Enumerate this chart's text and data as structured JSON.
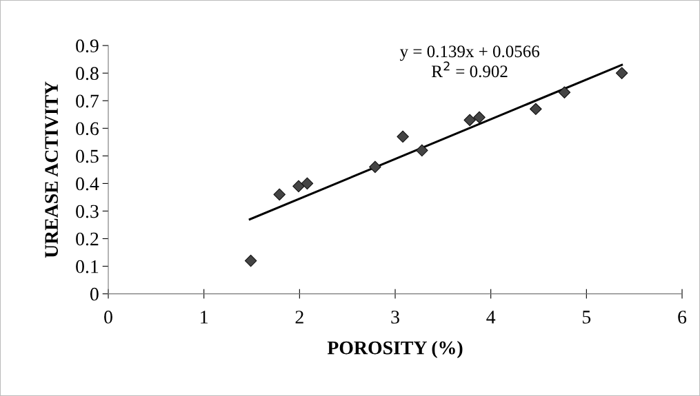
{
  "chart_data": {
    "type": "scatter",
    "xlabel": "POROSITY (%)",
    "ylabel": "UREASE ACTIVITY",
    "annotations": [
      "y = 0.139x + 0.0566",
      "R$^{2}$ = 0.902"
    ],
    "series": [
      {
        "color": "#444444",
        "marker": "diamond",
        "x": [
          1.49,
          1.79,
          1.99,
          2.08,
          2.79,
          3.08,
          3.28,
          3.78,
          3.88,
          4.47,
          4.77,
          5.37
        ],
        "values": [
          0.12,
          0.36,
          0.39,
          0.4,
          0.46,
          0.57,
          0.52,
          0.63,
          0.64,
          0.67,
          0.73,
          0.8
        ]
      },
      {
        "type": "line",
        "color": "#000000",
        "marker": "none",
        "line_style": "solid",
        "x": [
          1.48,
          5.37
        ],
        "values": [
          0.27,
          0.83
        ]
      }
    ],
    "xlim": [
      0,
      6
    ],
    "xticks": [
      0,
      1,
      2,
      3,
      4,
      5,
      6
    ],
    "ylim": [
      0,
      0.9
    ],
    "yticks": [
      0,
      0.1,
      0.2,
      0.3,
      0.4,
      0.5,
      0.6,
      0.7,
      0.8,
      0.9
    ],
    "grid": false,
    "legend": false
  }
}
